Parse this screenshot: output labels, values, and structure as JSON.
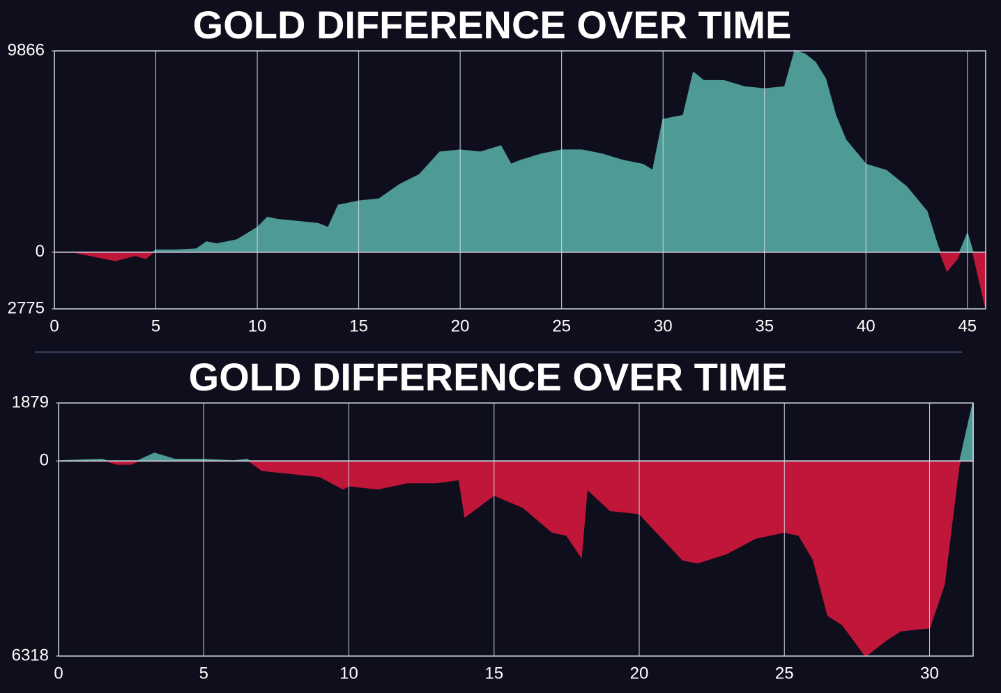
{
  "chart_data": [
    {
      "type": "area",
      "title": "GOLD DIFFERENCE OVER TIME",
      "x": [
        0,
        1,
        2,
        3,
        4,
        4.5,
        5,
        6,
        7,
        7.5,
        8,
        9,
        10,
        10.5,
        11,
        12,
        13,
        13.5,
        14,
        15,
        16,
        17,
        18,
        19,
        20,
        21,
        22,
        22.5,
        23,
        24,
        25,
        26,
        27,
        28,
        29,
        29.5,
        30,
        31,
        31.5,
        32,
        33,
        34,
        35,
        36,
        36.5,
        37,
        37.5,
        38,
        38.5,
        39,
        40,
        41,
        42,
        43,
        43.5,
        44,
        44.5,
        45,
        45.3,
        45.9
      ],
      "series": [
        {
          "values": [
            0,
            0,
            -200,
            -400,
            -150,
            -300,
            100,
            100,
            150,
            500,
            400,
            600,
            1200,
            1700,
            1600,
            1500,
            1400,
            1200,
            2300,
            2500,
            2600,
            3300,
            3800,
            4900,
            5000,
            4900,
            5200,
            4300,
            4500,
            4800,
            5000,
            5000,
            4800,
            4500,
            4300,
            4000,
            6500,
            6700,
            8800,
            8400,
            8400,
            8100,
            8000,
            8100,
            9866,
            9700,
            9300,
            8500,
            6700,
            5500,
            4300,
            4000,
            3200,
            2000,
            400,
            -900,
            -300,
            900,
            -100,
            -2700
          ],
          "positive_color": "#4e9a95",
          "negative_color": "#c0163a"
        }
      ],
      "xlim": [
        0,
        45.9
      ],
      "xticks": [
        0,
        5,
        10,
        15,
        20,
        25,
        30,
        35,
        40,
        45
      ],
      "ylim": [
        -2775,
        9866
      ],
      "yticks": [
        9866,
        0,
        {
          "value": -2775,
          "label": "2775"
        }
      ],
      "grid": "x"
    },
    {
      "type": "area",
      "title": "GOLD DIFFERENCE OVER TIME",
      "x": [
        0,
        1.5,
        2,
        2.5,
        3.3,
        4,
        5,
        6,
        6.5,
        7,
        8,
        9,
        9.8,
        10,
        11,
        12,
        13,
        13.8,
        14,
        15,
        16,
        17,
        17.5,
        18,
        18.2,
        19,
        20,
        21,
        21.5,
        22,
        23,
        24,
        25,
        25.5,
        26,
        26.5,
        27,
        27.8,
        28.5,
        29,
        30,
        30.5,
        31,
        31.5
      ],
      "series": [
        {
          "values": [
            0,
            50,
            -100,
            -100,
            250,
            50,
            50,
            0,
            50,
            -300,
            -400,
            -500,
            -900,
            -800,
            -900,
            -700,
            -700,
            -600,
            -1800,
            -1100,
            -1500,
            -2300,
            -2400,
            -3100,
            -900,
            -1600,
            -1700,
            -2700,
            -3200,
            -3300,
            -3000,
            -2500,
            -2300,
            -2400,
            -3200,
            -5000,
            -5300,
            -6318,
            -5800,
            -5500,
            -5400,
            -4000,
            -200,
            1879
          ],
          "positive_color": "#4e9a95",
          "negative_color": "#c0163a"
        }
      ],
      "xlim": [
        0,
        31.5
      ],
      "xticks": [
        0,
        5,
        10,
        15,
        20,
        25,
        30
      ],
      "ylim": [
        -6318,
        1879
      ],
      "yticks": [
        1879,
        0,
        {
          "value": -6318,
          "label": "6318"
        }
      ],
      "grid": "x"
    }
  ]
}
